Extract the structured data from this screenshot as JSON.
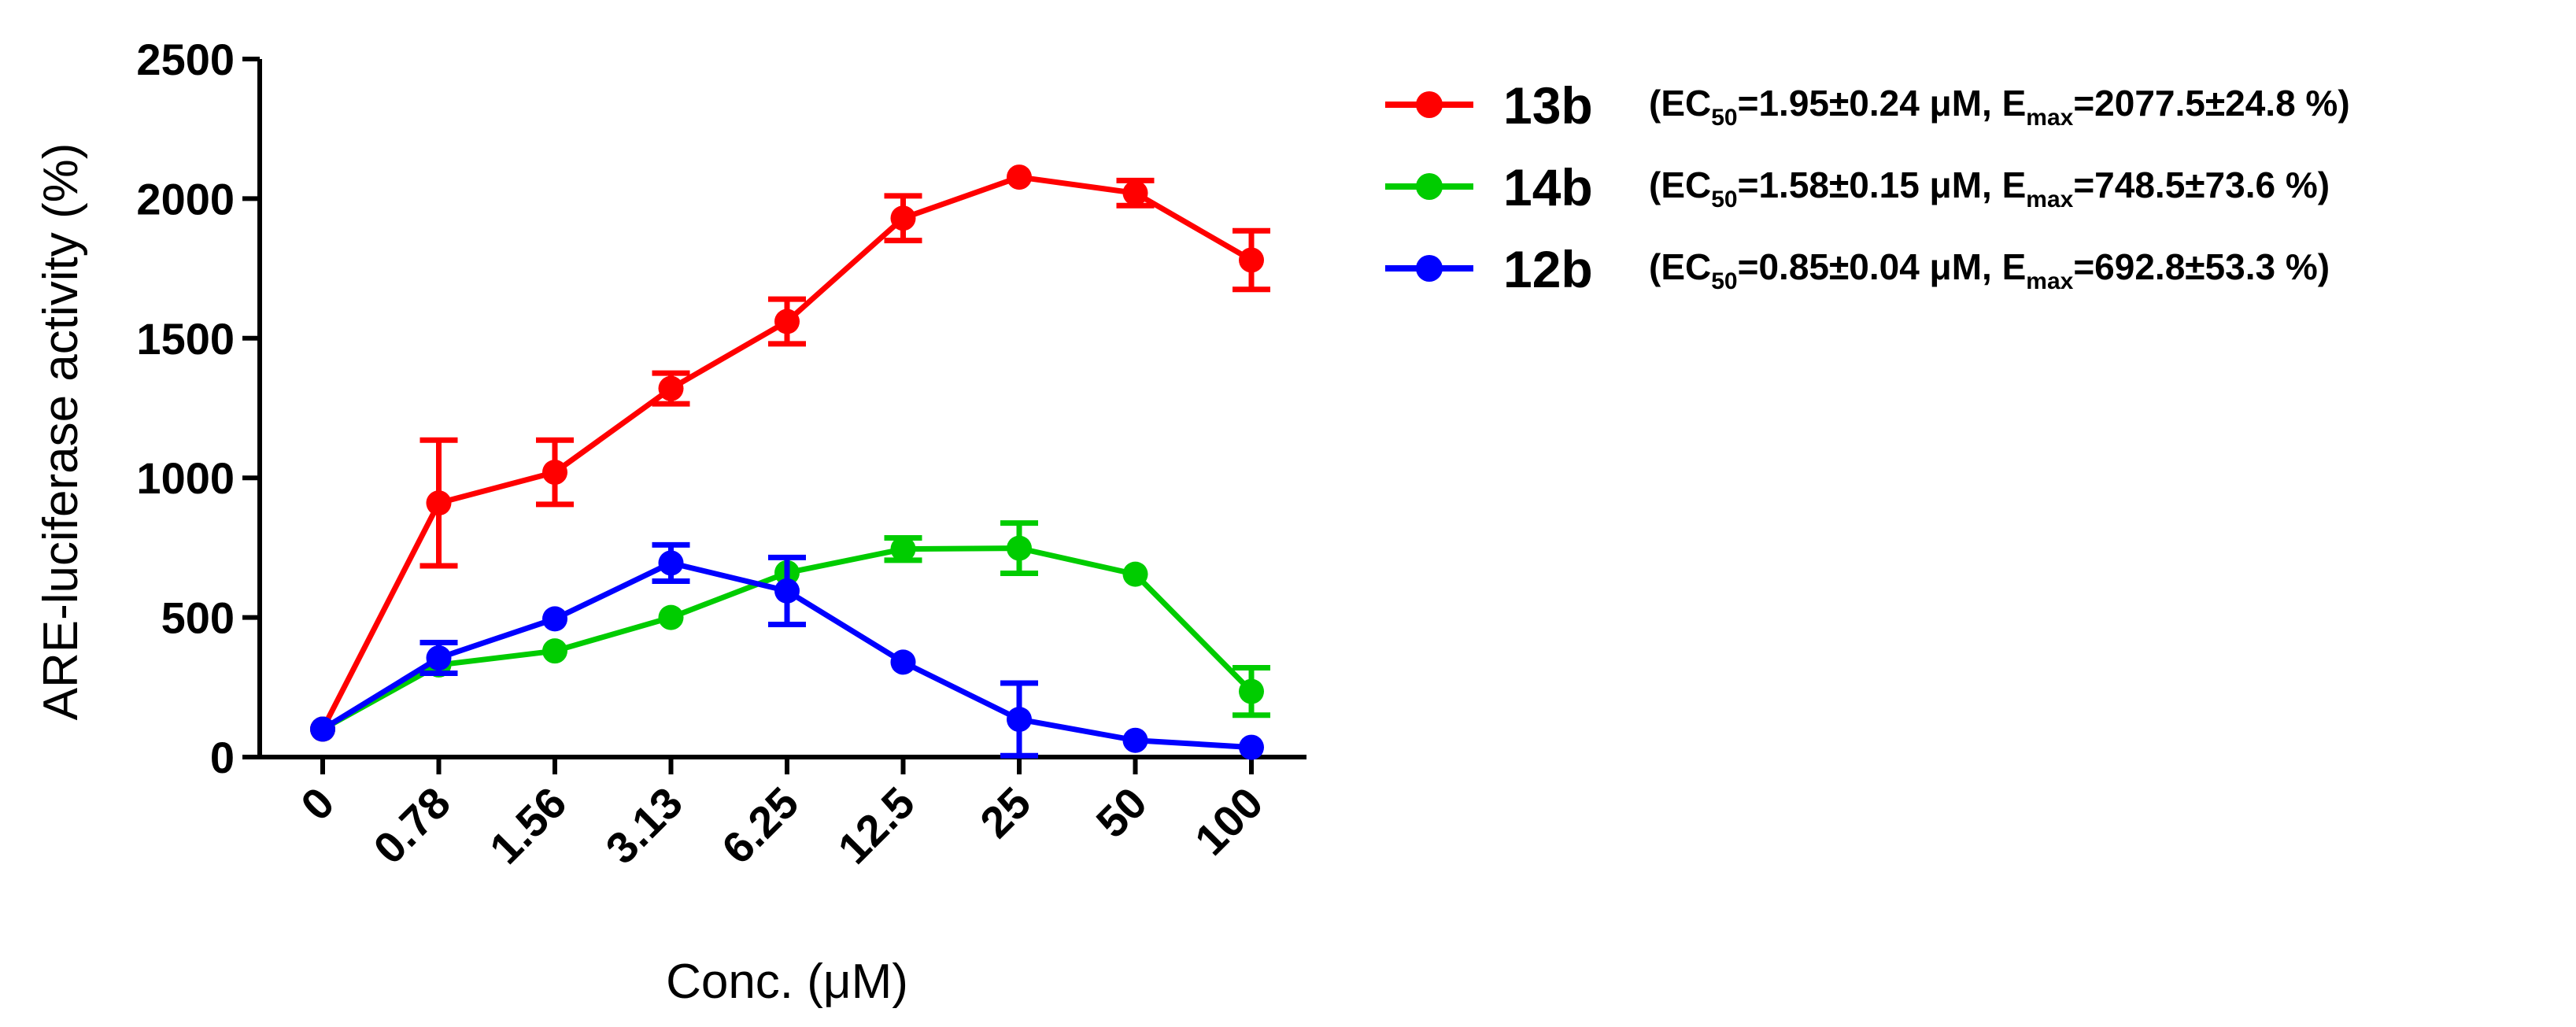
{
  "chart_data": {
    "type": "line",
    "xlabel": "Conc. (μM)",
    "ylabel": "ARE-luciferase activity (%)",
    "ylim": [
      0,
      2500
    ],
    "yticks": [
      0,
      500,
      1000,
      1500,
      2000,
      2500
    ],
    "categories": [
      "0",
      "0.78",
      "1.56",
      "3.13",
      "6.25",
      "12.5",
      "25",
      "50",
      "100"
    ],
    "error_bars": true,
    "legend_position": "right",
    "series": [
      {
        "name": "13b",
        "color": "#ff0000",
        "values": [
          100,
          910,
          1020,
          1320,
          1560,
          1930,
          2077,
          2020,
          1780
        ],
        "errors": [
          0,
          225,
          115,
          55,
          80,
          80,
          0,
          45,
          105
        ],
        "stats": {
          "ec50_prefix": "(EC",
          "ec50_sub": "50",
          "ec50_value": "=1.95±0.24 μM, E",
          "emax_sub": "max",
          "emax_value": "=2077.5±24.8 %)"
        }
      },
      {
        "name": "14b",
        "color": "#00cc00",
        "values": [
          100,
          330,
          380,
          500,
          660,
          745,
          748,
          655,
          235
        ],
        "errors": [
          0,
          0,
          0,
          0,
          0,
          40,
          90,
          0,
          85
        ],
        "stats": {
          "ec50_prefix": "(EC",
          "ec50_sub": "50",
          "ec50_value": "=1.58±0.15 μM, E",
          "emax_sub": "max",
          "emax_value": "=748.5±73.6 %)"
        }
      },
      {
        "name": "12b",
        "color": "#0000ff",
        "values": [
          100,
          355,
          495,
          695,
          595,
          340,
          135,
          60,
          35
        ],
        "errors": [
          0,
          55,
          0,
          65,
          120,
          0,
          130,
          0,
          0
        ],
        "stats": {
          "ec50_prefix": "(EC",
          "ec50_sub": "50",
          "ec50_value": "=0.85±0.04 μM, E",
          "emax_sub": "max",
          "emax_value": "=692.8±53.3 %)"
        }
      }
    ]
  }
}
